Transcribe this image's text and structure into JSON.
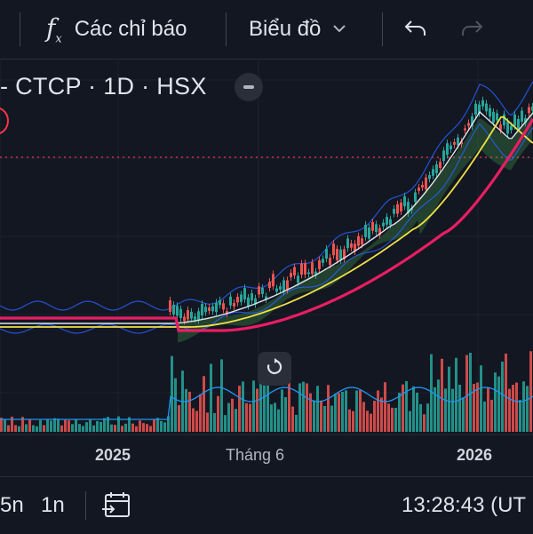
{
  "toolbar": {
    "indicators_label": "Các chỉ báo",
    "chart_type_label": "Biểu đồ",
    "icons": [
      "indicators-fx-icon",
      "chevron-down-icon",
      "undo-icon",
      "redo-icon"
    ]
  },
  "legend": {
    "title": "- CTCP · 1D · HSX"
  },
  "time_axis": {
    "labels": [
      "2025",
      "Tháng 6",
      "2026"
    ]
  },
  "bottom_bar": {
    "range_5n": "5n",
    "range_1n": "1n",
    "clock": "13:28:43 (UT"
  },
  "colors": {
    "background": "#131722",
    "up": "#26a69a",
    "down": "#ef5350",
    "ma_white": "#e0e3eb",
    "ma_yellow": "#f0e046",
    "ma_pink": "#e91e63",
    "band_blue": "#2962ff",
    "cloud_green": "#4caf50",
    "price_line": "#f23645"
  },
  "chart_data": {
    "type": "candlestick",
    "xlabels": [
      "2025",
      "Tháng 6",
      "2026"
    ],
    "grid": true
  }
}
